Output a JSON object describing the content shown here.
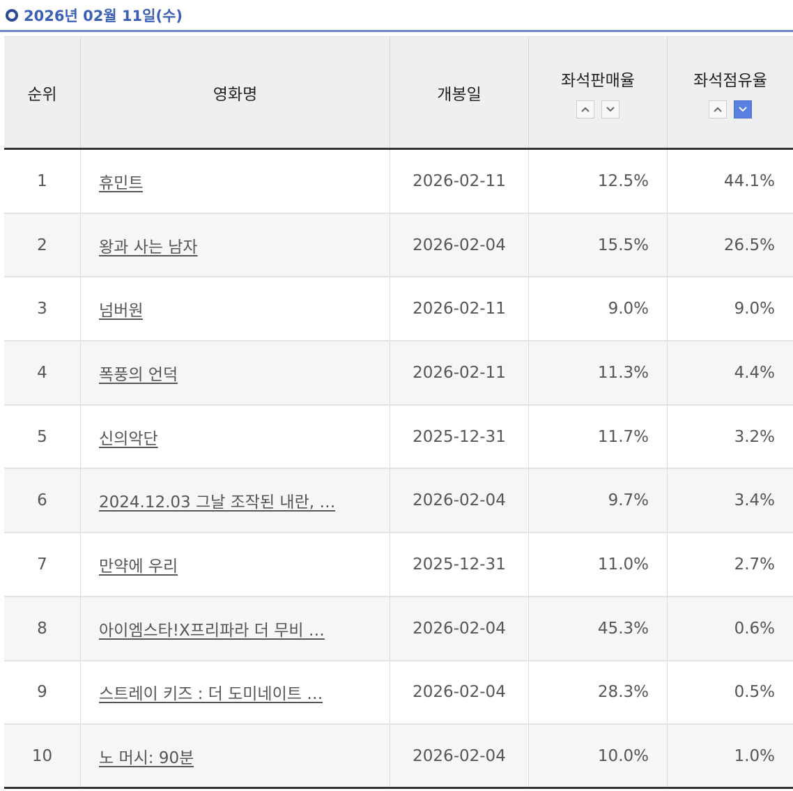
{
  "date_title": "2026년 02월 11일(수)",
  "headers": {
    "rank": "순위",
    "title": "영화명",
    "release": "개봉일",
    "sales_rate": "좌석판매율",
    "share_rate": "좌석점유율"
  },
  "sort_state": {
    "sales_rate": "none",
    "share_rate": "desc"
  },
  "colors": {
    "accent": "#3a5fb5",
    "active_sort": "#5b7fe0"
  },
  "rows": [
    {
      "rank": "1",
      "title": "휴민트",
      "release": "2026-02-11",
      "sales_rate": "12.5%",
      "share_rate": "44.1%"
    },
    {
      "rank": "2",
      "title": "왕과 사는 남자",
      "release": "2026-02-04",
      "sales_rate": "15.5%",
      "share_rate": "26.5%"
    },
    {
      "rank": "3",
      "title": "넘버원",
      "release": "2026-02-11",
      "sales_rate": "9.0%",
      "share_rate": "9.0%"
    },
    {
      "rank": "4",
      "title": "폭풍의 언덕",
      "release": "2026-02-11",
      "sales_rate": "11.3%",
      "share_rate": "4.4%"
    },
    {
      "rank": "5",
      "title": "신의악단",
      "release": "2025-12-31",
      "sales_rate": "11.7%",
      "share_rate": "3.2%"
    },
    {
      "rank": "6",
      "title": "2024.12.03 그날 조작된 내란, …",
      "release": "2026-02-04",
      "sales_rate": "9.7%",
      "share_rate": "3.4%"
    },
    {
      "rank": "7",
      "title": "만약에 우리",
      "release": "2025-12-31",
      "sales_rate": "11.0%",
      "share_rate": "2.7%"
    },
    {
      "rank": "8",
      "title": "아이엠스타!X프리파라 더 무비 …",
      "release": "2026-02-04",
      "sales_rate": "45.3%",
      "share_rate": "0.6%"
    },
    {
      "rank": "9",
      "title": "스트레이 키즈 : 더 도미네이트 …",
      "release": "2026-02-04",
      "sales_rate": "28.3%",
      "share_rate": "0.5%"
    },
    {
      "rank": "10",
      "title": "노 머시: 90분",
      "release": "2026-02-04",
      "sales_rate": "10.0%",
      "share_rate": "1.0%"
    }
  ]
}
